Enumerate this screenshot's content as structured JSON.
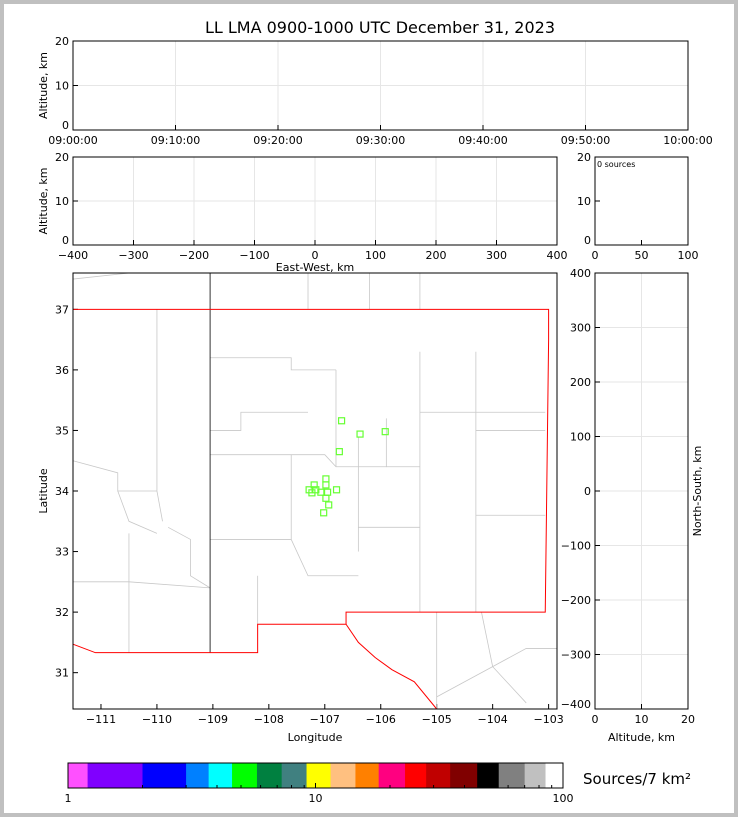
{
  "title": "LL LMA 0900-1000 UTC December 31, 2023",
  "chart_data": [
    {
      "id": "time-height",
      "type": "scatter",
      "xlabel": "",
      "ylabel": "Altitude, km",
      "xticks": [
        "09:00:00",
        "09:10:00",
        "09:20:00",
        "09:30:00",
        "09:40:00",
        "09:50:00",
        "10:00:00"
      ],
      "ylim": [
        0,
        20
      ],
      "yticks": [
        0,
        10,
        20
      ],
      "grid": true,
      "points": []
    },
    {
      "id": "ew-height",
      "type": "scatter",
      "xlabel": "East-West, km",
      "ylabel": "Altitude, km",
      "xlim": [
        -400,
        400
      ],
      "xticks": [
        -400,
        -300,
        -200,
        -100,
        0,
        100,
        200,
        300,
        400
      ],
      "ylim": [
        0,
        20
      ],
      "yticks": [
        0,
        10,
        20
      ],
      "grid": true,
      "points": []
    },
    {
      "id": "histogram",
      "type": "scatter",
      "annotation": "0 sources",
      "xlim": [
        0,
        100
      ],
      "xticks": [
        0,
        50,
        100
      ],
      "ylim": [
        0,
        20
      ],
      "yticks": [
        0,
        10,
        20
      ],
      "grid": false
    },
    {
      "id": "plan-view",
      "type": "scatter",
      "xlabel": "Longitude",
      "ylabel": "Latitude",
      "xlim": [
        -111.5,
        -102.85
      ],
      "ylim": [
        30.4,
        37.6
      ],
      "xticks": [
        -111,
        -110,
        -109,
        -108,
        -107,
        -106,
        -105,
        -104,
        -103
      ],
      "yticks": [
        31,
        32,
        33,
        34,
        35,
        36,
        37
      ],
      "marker_color": "#66ff33",
      "state_border_color": "#ff0000",
      "county_color": "#c8c8c8",
      "points": [
        [
          -106.7,
          35.16
        ],
        [
          -106.37,
          34.94
        ],
        [
          -105.92,
          34.98
        ],
        [
          -106.74,
          34.65
        ],
        [
          -106.98,
          34.2
        ],
        [
          -107.19,
          34.1
        ],
        [
          -106.98,
          34.1
        ],
        [
          -107.28,
          34.02
        ],
        [
          -107.16,
          34.02
        ],
        [
          -107.07,
          33.98
        ],
        [
          -106.95,
          33.98
        ],
        [
          -106.79,
          34.02
        ],
        [
          -107.23,
          33.97
        ],
        [
          -106.98,
          33.88
        ],
        [
          -106.93,
          33.77
        ],
        [
          -107.02,
          33.64
        ]
      ]
    },
    {
      "id": "ns-height",
      "type": "scatter",
      "xlabel": "Altitude, km",
      "ylabel": "North-South, km",
      "xlim": [
        0,
        20
      ],
      "xticks": [
        0,
        10,
        20
      ],
      "ylim": [
        -400,
        400
      ],
      "yticks": [
        -400,
        -300,
        -200,
        -100,
        0,
        100,
        200,
        300,
        400
      ],
      "grid": true,
      "points": []
    }
  ],
  "colorbar": {
    "label": "Sources/7 km²",
    "scale": "log",
    "range": [
      1,
      100
    ],
    "tick_labels": [
      "1",
      "10",
      "100"
    ],
    "colors": [
      "#ff50ff",
      "#8000ff",
      "#0000ff",
      "#0080ff",
      "#00ffff",
      "#00ff00",
      "#008040",
      "#408080",
      "#ffff00",
      "#ffc080",
      "#ff8000",
      "#ff0080",
      "#ff0000",
      "#c00000",
      "#800000",
      "#000000",
      "#808080",
      "#c0c0c0",
      "#ffffff"
    ]
  }
}
